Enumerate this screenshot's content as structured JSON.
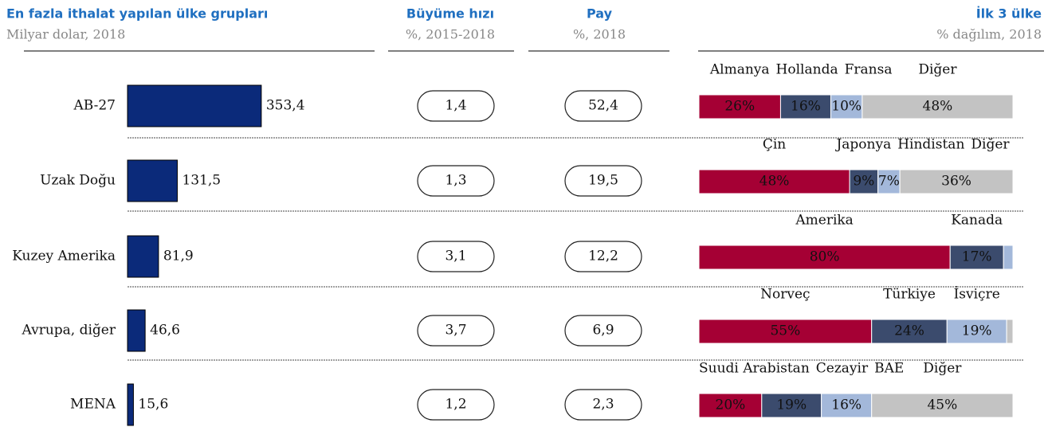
{
  "header": {
    "title": "En fazla ithalat yapılan ülke grupları",
    "subtitle": "Milyar dolar, 2018",
    "growth_title": "Büyüme hızı",
    "growth_subtitle": "%, 2015-2018",
    "share_title": "Pay",
    "share_subtitle": "%, 2018",
    "top_title": "İlk 3 ülke",
    "top_subtitle": "% dağılım, 2018"
  },
  "rows": [
    {
      "name": "AB-27",
      "value": 353.4,
      "value_label": "353,4",
      "growth": "1,4",
      "share": "52,4",
      "segments": {
        "names": [
          "Almanya",
          "Hollanda",
          "Fransa",
          "Diğer"
        ],
        "values": [
          26,
          16,
          10,
          48
        ],
        "value_labels": [
          "26%",
          "16%",
          "10%",
          "48%"
        ]
      }
    },
    {
      "name": "Uzak Doğu",
      "value": 131.5,
      "value_label": "131,5",
      "growth": "1,3",
      "share": "19,5",
      "segments": {
        "names": [
          "Çin",
          "Japonya",
          "Hindistan",
          "Diğer"
        ],
        "values": [
          48,
          9,
          7,
          36
        ],
        "value_labels": [
          "48%",
          "9%",
          "7%",
          "36%"
        ]
      }
    },
    {
      "name": "Kuzey Amerika",
      "value": 81.9,
      "value_label": "81,9",
      "growth": "3,1",
      "share": "12,2",
      "segments": {
        "names": [
          "Amerika",
          "Kanada",
          null
        ],
        "values": [
          80,
          17,
          3
        ],
        "value_labels": [
          "80%",
          "17%",
          null
        ]
      }
    },
    {
      "name": "Avrupa, diğer",
      "value": 46.6,
      "value_label": "46,6",
      "growth": "3,7",
      "share": "6,9",
      "segments": {
        "names": [
          "Norveç",
          "Türkiye",
          "İsviçre",
          null
        ],
        "values": [
          55,
          24,
          19,
          2
        ],
        "value_labels": [
          "55%",
          "24%",
          "19%",
          null
        ]
      }
    },
    {
      "name": "MENA",
      "value": 15.6,
      "value_label": "15,6",
      "growth": "1,2",
      "share": "2,3",
      "segments": {
        "names": [
          "Suudi Arabistan",
          "Cezayir",
          "BAE",
          "Diğer"
        ],
        "values": [
          20,
          19,
          16,
          45
        ],
        "value_labels": [
          "20%",
          "19%",
          "16%",
          "45%"
        ]
      }
    }
  ]
}
